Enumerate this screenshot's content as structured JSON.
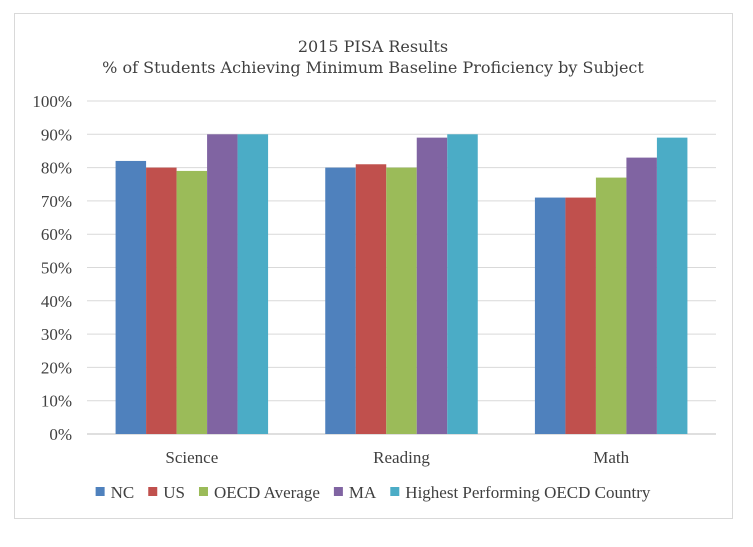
{
  "chart_data": {
    "type": "bar",
    "title": "2015 PISA Results",
    "subtitle": "% of Students Achieving Minimum Baseline Proficiency by Subject",
    "categories": [
      "Science",
      "Reading",
      "Math"
    ],
    "series": [
      {
        "name": "NC",
        "values": [
          82,
          80,
          71
        ],
        "color": "#4f81bd"
      },
      {
        "name": "US",
        "values": [
          80,
          81,
          71
        ],
        "color": "#c0504d"
      },
      {
        "name": "OECD Average",
        "values": [
          79,
          80,
          77
        ],
        "color": "#9bbb59"
      },
      {
        "name": "MA",
        "values": [
          90,
          89,
          83
        ],
        "color": "#8064a2"
      },
      {
        "name": "Highest Performing OECD Country",
        "values": [
          90,
          90,
          89
        ],
        "color": "#4bacc6"
      }
    ],
    "ylim": [
      0,
      100
    ],
    "yticks": [
      "0%",
      "10%",
      "20%",
      "30%",
      "40%",
      "50%",
      "60%",
      "70%",
      "80%",
      "90%",
      "100%"
    ],
    "grid": true,
    "legend_position": "bottom"
  }
}
